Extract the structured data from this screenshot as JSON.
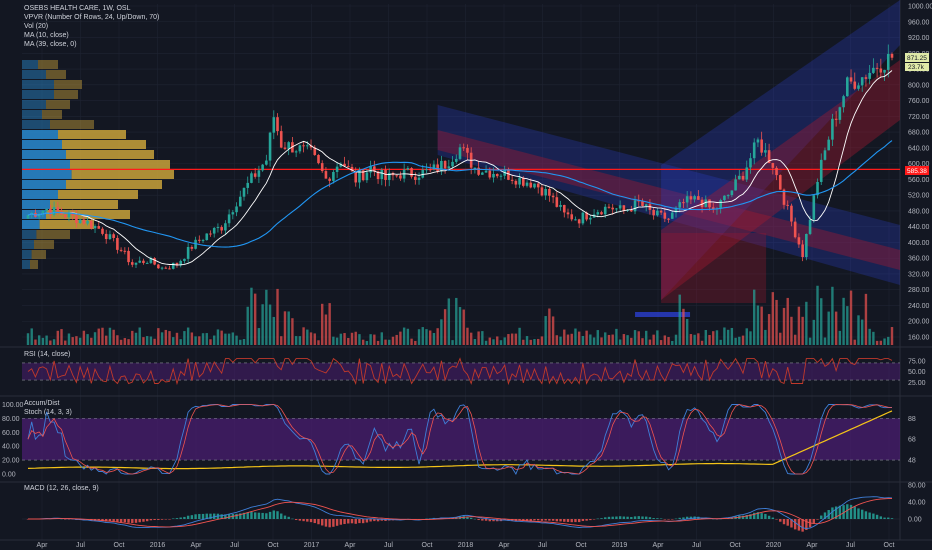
{
  "colors": {
    "background": "#131722",
    "grid": "#1f2433",
    "up": "#26a69a",
    "down": "#ef5350",
    "ma_fast": "#ffffff",
    "ma_slow": "#2196f3",
    "channel_blue": "#2a3fd0",
    "channel_red": "#a31830",
    "vp_up": "#2a8bd0",
    "vp_down": "#c9a23a",
    "hline": "#ff1a1a",
    "rsi": "#c0392b",
    "accum": "#f5c518",
    "stoch_k": "#3f7fd8",
    "stoch_d": "#ef5350",
    "macd": "#3f7fd8",
    "signal": "#ef5350",
    "band": "#4a1e70"
  },
  "legend": {
    "title": "OSEBS HEALTH CARE, 1W, OSL",
    "vpvr": "VPVR (Number Of Rows, 24, Up/Down, 70)",
    "vol": "Vol (20)",
    "ma1": "MA (10, close)",
    "ma2": "MA (39, close, 0)",
    "rsi": "RSI (14, close)",
    "accum": "Accum/Dist",
    "stoch": "Stoch (14, 3, 3)",
    "macd": "MACD (12, 26, close, 9)"
  },
  "price_tags": {
    "last": "871.25",
    "last_sub": "23.7k",
    "hline": "585.38"
  },
  "chart_data": [
    {
      "type": "candlestick",
      "ylim": [
        130,
        1000
      ],
      "y_ticks": [
        "1000.00",
        "960.00",
        "920.00",
        "880.00",
        "840.00",
        "800.00",
        "760.00",
        "720.00",
        "680.00",
        "640.00",
        "600.00",
        "560.00",
        "520.00",
        "480.00",
        "440.00",
        "400.00",
        "360.00",
        "320.00",
        "280.00",
        "240.00",
        "200.00",
        "160.00"
      ],
      "x_ticks": [
        "Apr",
        "Jul",
        "Oct",
        "2016",
        "Apr",
        "Jul",
        "Oct",
        "2017",
        "Apr",
        "Jul",
        "Oct",
        "2018",
        "Apr",
        "Jul",
        "Oct",
        "2019",
        "Apr",
        "Jul",
        "Oct",
        "2020",
        "Apr",
        "Jul",
        "Oct"
      ],
      "horizontal_line": 585.38,
      "close_anchors": [
        [
          0,
          470
        ],
        [
          5,
          485
        ],
        [
          10,
          470
        ],
        [
          15,
          455
        ],
        [
          20,
          430
        ],
        [
          25,
          380
        ],
        [
          28,
          345
        ],
        [
          32,
          355
        ],
        [
          36,
          335
        ],
        [
          40,
          345
        ],
        [
          44,
          390
        ],
        [
          48,
          420
        ],
        [
          52,
          440
        ],
        [
          56,
          505
        ],
        [
          60,
          560
        ],
        [
          64,
          610
        ],
        [
          66,
          720
        ],
        [
          68,
          650
        ],
        [
          72,
          640
        ],
        [
          76,
          625
        ],
        [
          80,
          560
        ],
        [
          84,
          610
        ],
        [
          88,
          560
        ],
        [
          92,
          590
        ],
        [
          96,
          560
        ],
        [
          100,
          575
        ],
        [
          104,
          575
        ],
        [
          108,
          580
        ],
        [
          112,
          600
        ],
        [
          116,
          640
        ],
        [
          120,
          590
        ],
        [
          124,
          580
        ],
        [
          128,
          575
        ],
        [
          132,
          560
        ],
        [
          136,
          550
        ],
        [
          140,
          520
        ],
        [
          144,
          470
        ],
        [
          148,
          460
        ],
        [
          152,
          480
        ],
        [
          156,
          490
        ],
        [
          160,
          480
        ],
        [
          164,
          500
        ],
        [
          168,
          470
        ],
        [
          172,
          460
        ],
        [
          176,
          500
        ],
        [
          180,
          510
        ],
        [
          184,
          480
        ],
        [
          188,
          520
        ],
        [
          192,
          575
        ],
        [
          196,
          655
        ],
        [
          200,
          600
        ],
        [
          204,
          480
        ],
        [
          208,
          370
        ],
        [
          212,
          560
        ],
        [
          216,
          700
        ],
        [
          220,
          800
        ],
        [
          224,
          820
        ],
        [
          228,
          850
        ],
        [
          232,
          871
        ]
      ],
      "volume_max": 70
    },
    {
      "type": "line",
      "name": "RSI",
      "ylim": [
        0,
        100
      ],
      "y_ticks": [
        "75.00",
        "50.00",
        "25.00"
      ],
      "levels": [
        70,
        30
      ]
    },
    {
      "type": "line",
      "name": "Stoch / Accum/Dist",
      "ylim": [
        0,
        100
      ],
      "y_ticks_left": [
        "100.00",
        "80.00",
        "60.00",
        "40.00",
        "20.00",
        "0.00"
      ],
      "y_ticks_right": [
        "88",
        "68",
        "48"
      ],
      "levels": [
        80,
        20
      ]
    },
    {
      "type": "bar",
      "name": "MACD",
      "y_ticks": [
        "80.00",
        "40.00",
        "0.00"
      ]
    }
  ]
}
